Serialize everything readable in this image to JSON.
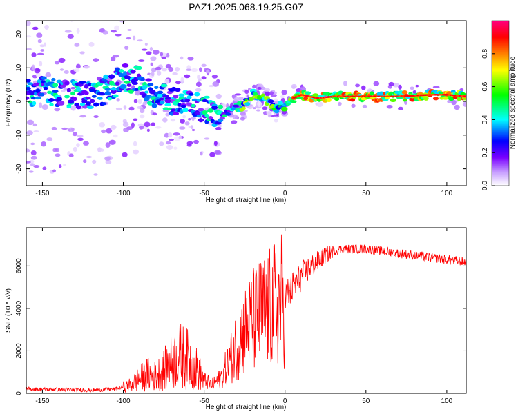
{
  "title": "PAZ1.2025.068.19.25.G07",
  "chart_data": [
    {
      "type": "heatmap",
      "xlabel": "Height of straight line (km)",
      "ylabel": "Frequency (Hz)",
      "xlim": [
        -160,
        112
      ],
      "ylim": [
        -25,
        24
      ],
      "x_ticks": [
        "-150",
        "-100",
        "-50",
        "0",
        "50",
        "100"
      ],
      "y_ticks": [
        "-20",
        "-10",
        "0",
        "10",
        "20"
      ],
      "colorbar": {
        "label": "Normalized spectral amplitude",
        "range": [
          0,
          1
        ],
        "ticks": [
          "0.0",
          "0.2",
          "0.4",
          "0.6",
          "0.8"
        ]
      },
      "ridge": {
        "x": [
          -160,
          -145,
          -130,
          -115,
          -100,
          -90,
          -80,
          -70,
          -60,
          -50,
          -45,
          -40,
          -35,
          -30,
          -25,
          -20,
          -15,
          -10,
          -5,
          0,
          5,
          10,
          20,
          30,
          50,
          70,
          90,
          100,
          112
        ],
        "y": [
          3,
          3,
          2,
          2,
          7,
          6,
          2,
          0,
          0,
          -2,
          -3,
          -5,
          -3,
          -2,
          -1,
          2,
          1,
          0,
          -2,
          -1,
          1,
          2,
          1,
          1.5,
          1.5,
          1.5,
          2,
          2,
          1.5
        ]
      }
    },
    {
      "type": "line",
      "xlabel": "Height of straight line (km)",
      "ylabel": "SNR (10 * v/v)",
      "xlim": [
        -160,
        112
      ],
      "ylim": [
        0,
        7800
      ],
      "x_ticks": [
        "-150",
        "-100",
        "-50",
        "0",
        "50",
        "100"
      ],
      "y_ticks": [
        "0",
        "2000",
        "4000",
        "6000"
      ],
      "series": [
        {
          "color": "#ff0000",
          "x": [
            -160,
            -140,
            -120,
            -105,
            -95,
            -90,
            -85,
            -80,
            -75,
            -70,
            -65,
            -60,
            -55,
            -50,
            -45,
            -40,
            -35,
            -30,
            -25,
            -20,
            -15,
            -10,
            -5,
            0,
            5,
            10,
            15,
            20,
            25,
            30,
            35,
            40,
            50,
            60,
            70,
            80,
            90,
            100,
            112
          ],
          "y": [
            200,
            180,
            150,
            200,
            400,
            700,
            900,
            800,
            1100,
            1500,
            1800,
            1600,
            1200,
            600,
            400,
            700,
            1400,
            2300,
            2900,
            3400,
            3700,
            3900,
            4200,
            4500,
            5000,
            5500,
            5900,
            6200,
            6500,
            6700,
            6800,
            6800,
            6800,
            6700,
            6600,
            6500,
            6400,
            6300,
            6200
          ]
        }
      ]
    }
  ]
}
